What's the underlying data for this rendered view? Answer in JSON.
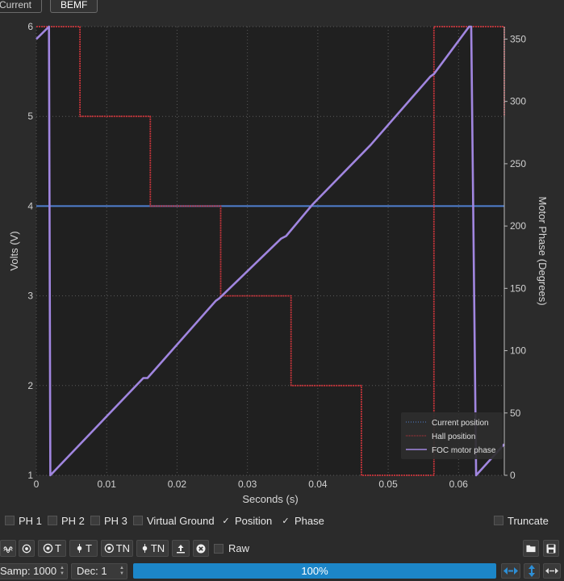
{
  "tabs": [
    {
      "label": "Current",
      "active": false
    },
    {
      "label": "BEMF",
      "active": true
    }
  ],
  "chart_data": {
    "type": "line",
    "xlabel": "Seconds (s)",
    "ylabel_left": "Volts (V)",
    "ylabel_right": "Motor Phase (Degrees)",
    "xlim": [
      0,
      0.0665
    ],
    "ylim_left": [
      1,
      6
    ],
    "ylim_right": [
      0,
      360
    ],
    "x_ticks": [
      "0",
      "0.01",
      "0.02",
      "0.03",
      "0.04",
      "0.05",
      "0.06"
    ],
    "y_left_ticks": [
      "1",
      "2",
      "3",
      "4",
      "5",
      "6"
    ],
    "y_right_ticks": [
      "0",
      "50",
      "100",
      "150",
      "200",
      "250",
      "300",
      "350"
    ],
    "grid": true,
    "legend_position": "bottom-right",
    "series": [
      {
        "name": "Current position",
        "axis": "left",
        "color": "#4f7fd0",
        "x": [
          0,
          0.0665
        ],
        "y": [
          4,
          4
        ]
      },
      {
        "name": "Hall position",
        "axis": "left",
        "color": "#c8353b",
        "x": [
          0,
          0.0062,
          0.0062,
          0.0162,
          0.0162,
          0.0262,
          0.0262,
          0.0362,
          0.0362,
          0.0462,
          0.0462,
          0.0565,
          0.0565,
          0.0665,
          0.0665
        ],
        "y": [
          6,
          6,
          5,
          5,
          4,
          4,
          3,
          3,
          2,
          2,
          1,
          1,
          6,
          6,
          5
        ]
      },
      {
        "name": "FOC motor phase",
        "axis": "right",
        "color": "#a186e0",
        "x": [
          0,
          0.0018,
          0.0018,
          0.002,
          0.0152,
          0.0158,
          0.0255,
          0.026,
          0.0348,
          0.0355,
          0.0392,
          0.0475,
          0.056,
          0.0565,
          0.0615,
          0.0618,
          0.0618,
          0.0625,
          0.0665
        ],
        "y": [
          350,
          360,
          360,
          0,
          78,
          78,
          140,
          142,
          190,
          192,
          217,
          265,
          320,
          322,
          360,
          360,
          360,
          0,
          25
        ]
      }
    ]
  },
  "checks": [
    {
      "label": "PH 1",
      "checked": false
    },
    {
      "label": "PH 2",
      "checked": false
    },
    {
      "label": "PH 3",
      "checked": false
    },
    {
      "label": "Virtual Ground",
      "checked": false
    },
    {
      "label": "Position",
      "checked": true
    },
    {
      "label": "Phase",
      "checked": true
    }
  ],
  "truncate_label": "Truncate",
  "toolbar": {
    "t_label": "T",
    "tn_label": "TN",
    "raw_label": "Raw"
  },
  "bottom": {
    "samp": "Samp: 1000",
    "dec": "Dec: 1",
    "progress": "100%",
    "progress_value": 1.0
  }
}
